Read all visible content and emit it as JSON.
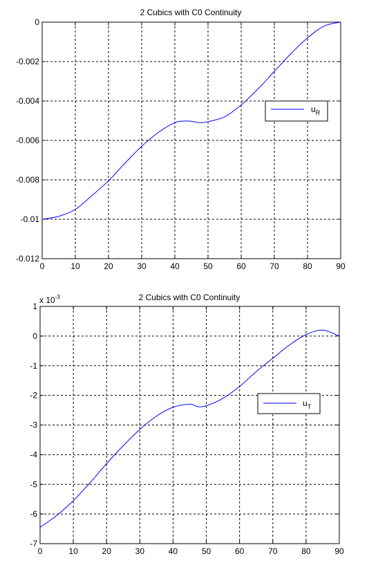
{
  "figure": {
    "background": "#ffffff",
    "line_color": "#0000ff",
    "axis_color": "#000000"
  },
  "chart_data": [
    {
      "type": "line",
      "title": "2 Cubics with C0 Continuity",
      "xlabel": "",
      "ylabel": "",
      "xlim": [
        0,
        90
      ],
      "ylim": [
        -0.012,
        0
      ],
      "xticks": [
        0,
        10,
        20,
        30,
        40,
        50,
        60,
        70,
        80,
        90
      ],
      "yticks": [
        0,
        -0.002,
        -0.004,
        -0.006,
        -0.008,
        -0.01,
        -0.012
      ],
      "ytick_labels": [
        "0",
        "-0.002",
        "-0.004",
        "-0.006",
        "-0.008",
        "-0.01",
        "-0.012"
      ],
      "grid": true,
      "legend_position": "right",
      "series": [
        {
          "legend_main": "u",
          "legend_sub": "R",
          "color": "#0000ff",
          "x": [
            0,
            5,
            10,
            15,
            20,
            25,
            30,
            35,
            40,
            42.5,
            45,
            47.5,
            50,
            55,
            60,
            65,
            70,
            75,
            80,
            85,
            90
          ],
          "y": [
            -0.01,
            -0.00985,
            -0.0095,
            -0.0088,
            -0.00805,
            -0.00715,
            -0.0063,
            -0.0056,
            -0.0051,
            -0.00502,
            -0.00503,
            -0.0051,
            -0.00505,
            -0.0048,
            -0.0042,
            -0.0034,
            -0.0025,
            -0.0016,
            -0.0008,
            -0.0002,
            0
          ]
        }
      ]
    },
    {
      "type": "line",
      "title": "2 Cubics with C0 Continuity",
      "xlabel": "",
      "ylabel": "",
      "y_multiplier": "x 10",
      "y_multiplier_exponent": "-3",
      "xlim": [
        0,
        90
      ],
      "ylim": [
        -7,
        1
      ],
      "xticks": [
        0,
        10,
        20,
        30,
        40,
        50,
        60,
        70,
        80,
        90
      ],
      "yticks": [
        1,
        0,
        -1,
        -2,
        -3,
        -4,
        -5,
        -6,
        -7
      ],
      "ytick_labels": [
        "1",
        "0",
        "-1",
        "-2",
        "-3",
        "-4",
        "-5",
        "-6",
        "-7"
      ],
      "grid": true,
      "legend_position": "right",
      "series": [
        {
          "legend_main": "u",
          "legend_sub": "T",
          "color": "#0000ff",
          "x": [
            0,
            5,
            10,
            15,
            20,
            25,
            30,
            35,
            40,
            45,
            47.5,
            50,
            55,
            60,
            65,
            70,
            75,
            80,
            85,
            90
          ],
          "y": [
            -6.45,
            -6.05,
            -5.55,
            -4.95,
            -4.3,
            -3.7,
            -3.15,
            -2.7,
            -2.4,
            -2.3,
            -2.38,
            -2.35,
            -2.1,
            -1.7,
            -1.2,
            -0.75,
            -0.3,
            0.05,
            0.2,
            0
          ]
        }
      ]
    }
  ]
}
